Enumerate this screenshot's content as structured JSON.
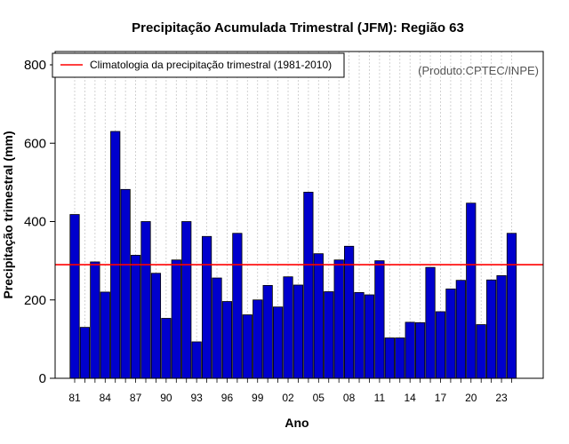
{
  "chart_data": {
    "type": "bar",
    "title": "Precipitação Acumulada Trimestral (JFM): Região 63",
    "xlabel": "Ano",
    "ylabel": "Precipitação trimestral (mm)",
    "credit": "(Produto:CPTEC/INPE)",
    "ylim": [
      0,
      800
    ],
    "yticks": [
      "0",
      "200",
      "400",
      "600",
      "800"
    ],
    "x_tick_labels": [
      "81",
      "84",
      "87",
      "90",
      "93",
      "96",
      "99",
      "02",
      "05",
      "08",
      "11",
      "14",
      "17",
      "20",
      "23"
    ],
    "x_tick_every": 3,
    "categories": [
      "1981",
      "1982",
      "1983",
      "1984",
      "1985",
      "1986",
      "1987",
      "1988",
      "1989",
      "1990",
      "1991",
      "1992",
      "1993",
      "1994",
      "1995",
      "1996",
      "1997",
      "1998",
      "1999",
      "2000",
      "2001",
      "2002",
      "2003",
      "2004",
      "2005",
      "2006",
      "2007",
      "2008",
      "2009",
      "2010",
      "2011",
      "2012",
      "2013",
      "2014",
      "2015",
      "2016",
      "2017",
      "2018",
      "2019",
      "2020",
      "2021",
      "2022",
      "2023",
      "2024"
    ],
    "values": [
      418,
      130,
      297,
      220,
      630,
      482,
      314,
      400,
      268,
      153,
      302,
      400,
      93,
      362,
      256,
      196,
      370,
      162,
      200,
      237,
      182,
      259,
      238,
      475,
      318,
      221,
      302,
      337,
      219,
      213,
      300,
      103,
      103,
      143,
      142,
      283,
      170,
      228,
      250,
      447,
      137,
      251,
      262,
      370
    ],
    "bar_color": "#0000cd",
    "climatology": {
      "label": "Climatologia da precipitação trimestral (1981-2010)",
      "value": 290,
      "color": "#ff0000"
    },
    "legend_position": "top-left",
    "grid": "vertical-dotted"
  }
}
